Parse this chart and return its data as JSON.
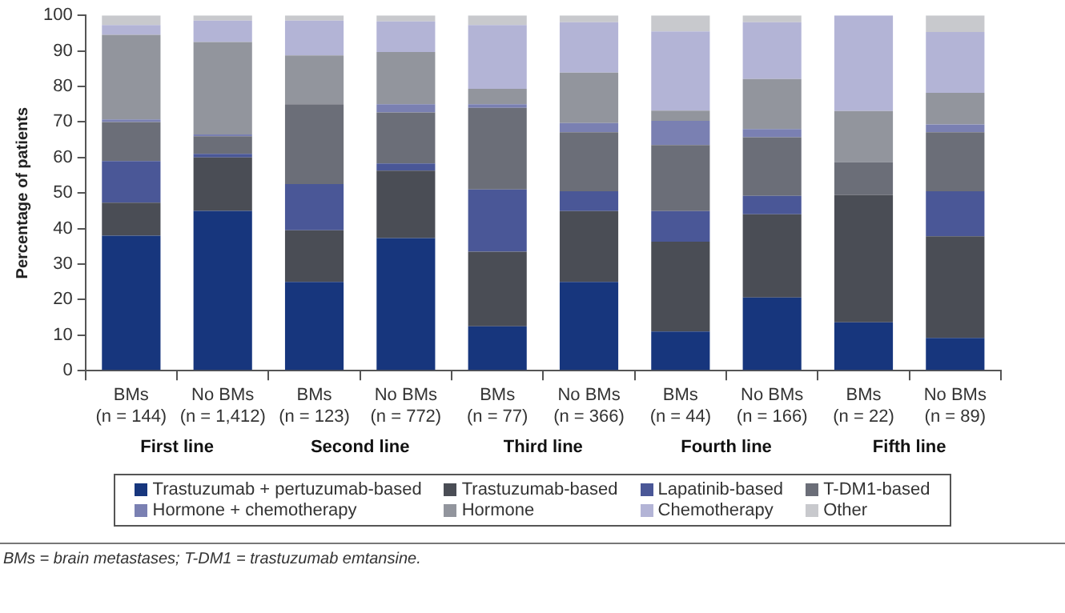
{
  "chart_data": {
    "type": "bar",
    "stacked": true,
    "ylabel": "Percentage of patients",
    "ylim": [
      0,
      100
    ],
    "yticks": [
      0,
      10,
      20,
      30,
      40,
      50,
      60,
      70,
      80,
      90,
      100
    ],
    "grid": false,
    "legend": "bottom",
    "categories": [
      "BMs\n(n = 144)",
      "No BMs\n(n = 1,412)",
      "BMs\n(n = 123)",
      "No BMs\n(n = 772)",
      "BMs\n(n = 77)",
      "No BMs\n(n = 366)",
      "BMs\n(n = 44)",
      "No BMs\n(n = 166)",
      "BMs\n(n = 22)",
      "No BMs\n(n = 89)"
    ],
    "series": [
      {
        "name": "Trastuzumab + pertuzumab-based",
        "color": "#17367d",
        "values": [
          38,
          45,
          25,
          37.3,
          12.5,
          25,
          11,
          20.6,
          13.6,
          9.2
        ]
      },
      {
        "name": "Trastuzumab-based",
        "color": "#4a4d55",
        "values": [
          9.3,
          15,
          14.5,
          19,
          21,
          19.9,
          25.3,
          23.4,
          35.8,
          28.6
        ]
      },
      {
        "name": "Lapatinib-based",
        "color": "#4a5797",
        "values": [
          11.7,
          1,
          13,
          2,
          17.5,
          5.6,
          8.6,
          5.2,
          0,
          12.7
        ]
      },
      {
        "name": "T-DM1-based",
        "color": "#6b6e78",
        "values": [
          11,
          5,
          22.5,
          14.4,
          23,
          16.6,
          18.6,
          16.5,
          9.3,
          16.6
        ]
      },
      {
        "name": "Hormone + chemotherapy",
        "color": "#7a80b2",
        "values": [
          0.7,
          0.5,
          0,
          2.3,
          1,
          2.6,
          6.8,
          2.3,
          0,
          2.2
        ]
      },
      {
        "name": "Hormone",
        "color": "#92959d",
        "values": [
          23.8,
          26,
          13.7,
          14.7,
          4.3,
          14.2,
          2.9,
          14.1,
          14.4,
          8.9
        ]
      },
      {
        "name": "Chemotherapy",
        "color": "#b3b4d6",
        "values": [
          2.8,
          6,
          9.8,
          8.6,
          18,
          14.2,
          22.3,
          16,
          26.9,
          17.1
        ]
      },
      {
        "name": "Other",
        "color": "#c8c9cd",
        "values": [
          2.7,
          1.5,
          1.5,
          1.7,
          2.7,
          1.9,
          4.5,
          1.9,
          0,
          4.7
        ]
      }
    ],
    "annotations": [
      "First line",
      "Second line",
      "Third line",
      "Fourth line",
      "Fifth line",
      "BMs = brain metastases; T-DM1 = trastuzumab emtansine."
    ]
  }
}
